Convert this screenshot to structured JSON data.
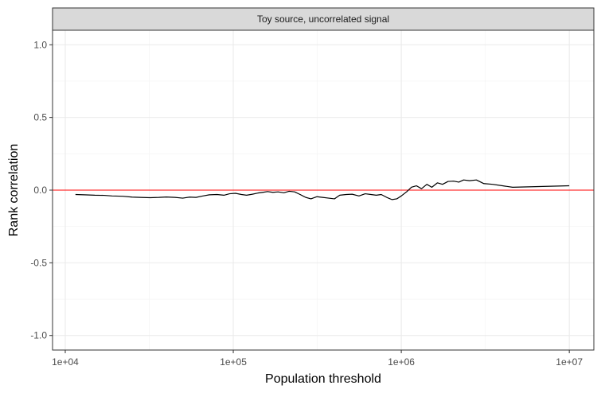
{
  "chart_data": {
    "type": "line",
    "facet_title": "Toy source, uncorrelated signal",
    "xlabel": "Population threshold",
    "ylabel": "Rank correlation",
    "x_scale": "log10",
    "xlim": [
      8400,
      14000000
    ],
    "ylim": [
      -1.1,
      1.1
    ],
    "x_ticks": [
      10000,
      100000,
      1000000,
      10000000
    ],
    "x_tick_labels": [
      "1e+04",
      "1e+05",
      "1e+06",
      "1e+07"
    ],
    "y_ticks": [
      -1.0,
      -0.5,
      0.0,
      0.5,
      1.0
    ],
    "y_tick_labels": [
      "-1.0",
      "-0.5",
      "0.0",
      "0.5",
      "1.0"
    ],
    "grid": true,
    "reference_line": {
      "y": 0,
      "color": "#ff0000"
    },
    "series": [
      {
        "color": "#000000",
        "x": [
          11500,
          13000,
          15000,
          17000,
          19000,
          22000,
          25000,
          28000,
          32000,
          36000,
          40000,
          45000,
          50000,
          55000,
          60000,
          66000,
          72000,
          80000,
          88000,
          95000,
          103000,
          112000,
          120000,
          130000,
          140000,
          150000,
          160000,
          172000,
          185000,
          200000,
          215000,
          232000,
          250000,
          270000,
          290000,
          315000,
          340000,
          370000,
          400000,
          430000,
          470000,
          510000,
          560000,
          610000,
          660000,
          710000,
          760000,
          820000,
          880000,
          940000,
          1000000,
          1080000,
          1150000,
          1230000,
          1320000,
          1420000,
          1520000,
          1640000,
          1760000,
          1900000,
          2050000,
          2200000,
          2350000,
          2550000,
          2800000,
          3100000,
          3500000,
          4000000,
          4600000,
          10000000
        ],
        "y": [
          -0.03,
          -0.032,
          -0.035,
          -0.036,
          -0.04,
          -0.042,
          -0.048,
          -0.05,
          -0.052,
          -0.05,
          -0.047,
          -0.05,
          -0.055,
          -0.048,
          -0.05,
          -0.04,
          -0.032,
          -0.03,
          -0.035,
          -0.025,
          -0.022,
          -0.03,
          -0.035,
          -0.028,
          -0.02,
          -0.015,
          -0.01,
          -0.015,
          -0.012,
          -0.018,
          -0.008,
          -0.012,
          -0.03,
          -0.05,
          -0.06,
          -0.045,
          -0.05,
          -0.055,
          -0.06,
          -0.035,
          -0.03,
          -0.028,
          -0.04,
          -0.025,
          -0.03,
          -0.035,
          -0.03,
          -0.05,
          -0.065,
          -0.06,
          -0.04,
          -0.01,
          0.02,
          0.03,
          0.01,
          0.04,
          0.02,
          0.05,
          0.04,
          0.06,
          0.062,
          0.055,
          0.07,
          0.065,
          0.07,
          0.045,
          0.04,
          0.03,
          0.02,
          0.03
        ]
      }
    ]
  }
}
